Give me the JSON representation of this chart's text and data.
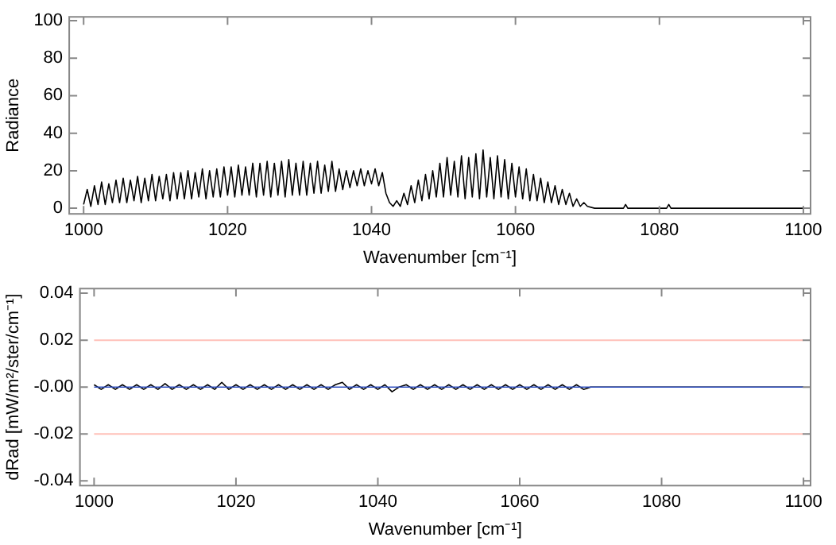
{
  "chart_data": [
    {
      "type": "line",
      "xlabel": "Wavenumber [cm⁻¹]",
      "ylabel": "Radiance",
      "xlim": [
        998,
        1101
      ],
      "xticks": [
        1000,
        1020,
        1040,
        1060,
        1080,
        1100
      ],
      "ylim": [
        -3,
        102
      ],
      "yticks": [
        0,
        20,
        40,
        60,
        80,
        100
      ],
      "grid": false,
      "series": [
        {
          "color": "#000000",
          "x": [
            1000,
            1000.5,
            1001,
            1001.5,
            1002,
            1002.5,
            1003,
            1003.5,
            1004,
            1004.5,
            1005,
            1005.5,
            1006,
            1006.5,
            1007,
            1007.5,
            1008,
            1008.5,
            1009,
            1009.5,
            1010,
            1010.5,
            1011,
            1011.5,
            1012,
            1012.5,
            1013,
            1013.5,
            1014,
            1014.5,
            1015,
            1015.5,
            1016,
            1016.5,
            1017,
            1017.5,
            1018,
            1018.5,
            1019,
            1019.5,
            1020,
            1020.5,
            1021,
            1021.5,
            1022,
            1022.5,
            1023,
            1023.5,
            1024,
            1024.5,
            1025,
            1025.5,
            1026,
            1026.5,
            1027,
            1027.5,
            1028,
            1028.5,
            1029,
            1029.5,
            1030,
            1030.5,
            1031,
            1031.5,
            1032,
            1032.5,
            1033,
            1033.5,
            1034,
            1034.5,
            1035,
            1035.5,
            1036,
            1036.5,
            1037,
            1037.5,
            1038,
            1038.5,
            1039,
            1039.5,
            1040,
            1040.5,
            1041,
            1041.5,
            1042,
            1042.5,
            1043,
            1043.5,
            1044,
            1044.5,
            1045,
            1045.5,
            1046,
            1046.5,
            1047,
            1047.5,
            1048,
            1048.5,
            1049,
            1049.5,
            1050,
            1050.5,
            1051,
            1051.5,
            1052,
            1052.5,
            1053,
            1053.5,
            1054,
            1054.5,
            1055,
            1055.5,
            1056,
            1056.5,
            1057,
            1057.5,
            1058,
            1058.5,
            1059,
            1059.5,
            1060,
            1060.5,
            1061,
            1061.5,
            1062,
            1062.5,
            1063,
            1063.5,
            1064,
            1064.5,
            1065,
            1065.5,
            1066,
            1066.5,
            1067,
            1067.5,
            1068,
            1068.5,
            1069,
            1069.5,
            1070,
            1071,
            1075,
            1075.3,
            1075.6,
            1081,
            1081.3,
            1081.6,
            1090,
            1100
          ],
          "values": [
            2,
            10,
            1,
            12,
            2,
            14,
            2,
            13,
            3,
            15,
            3,
            16,
            3,
            15,
            4,
            17,
            3,
            16,
            4,
            18,
            4,
            17,
            5,
            18,
            4,
            19,
            5,
            19,
            5,
            20,
            5,
            19,
            6,
            21,
            5,
            20,
            6,
            21,
            6,
            22,
            7,
            22,
            6,
            23,
            7,
            22,
            7,
            24,
            6,
            24,
            7,
            25,
            6,
            24,
            7,
            25,
            6,
            26,
            7,
            24,
            7,
            25,
            7,
            24,
            8,
            25,
            8,
            23,
            9,
            25,
            9,
            21,
            10,
            20,
            11,
            20,
            12,
            21,
            12,
            20,
            13,
            21,
            12,
            19,
            8,
            3,
            1,
            4,
            1,
            8,
            2,
            12,
            3,
            15,
            4,
            18,
            5,
            20,
            6,
            24,
            6,
            27,
            7,
            25,
            6,
            28,
            5,
            27,
            6,
            29,
            5,
            31,
            6,
            27,
            5,
            28,
            6,
            26,
            5,
            24,
            6,
            22,
            5,
            21,
            4,
            18,
            4,
            16,
            3,
            14,
            3,
            12,
            2,
            10,
            2,
            8,
            1,
            5,
            1,
            3,
            1,
            0,
            0,
            2,
            0,
            0,
            2,
            0,
            0,
            0
          ]
        }
      ]
    },
    {
      "type": "line",
      "xlabel": "Wavenumber [cm⁻¹]",
      "ylabel": "dRad [mW/m²/ster/cm⁻¹]",
      "xlim": [
        998,
        1101
      ],
      "xticks": [
        1000,
        1020,
        1040,
        1060,
        1080,
        1100
      ],
      "ylim": [
        -0.042,
        0.042
      ],
      "yticks": [
        {
          "value": -0.04,
          "label": "-0.04"
        },
        {
          "value": -0.02,
          "label": "-0.02"
        },
        {
          "value": 0,
          "label": "-0.00"
        },
        {
          "value": 0.02,
          "label": "0.02"
        },
        {
          "value": 0.04,
          "label": "0.04"
        }
      ],
      "grid": false,
      "ref_lines": [
        {
          "axis": "y",
          "value": 0.02,
          "color": "#ffc0b8"
        },
        {
          "axis": "y",
          "value": -0.02,
          "color": "#ffc0b8"
        }
      ],
      "series": [
        {
          "color": "#3050c0",
          "x": [
            1000,
            1100
          ],
          "values": [
            0,
            0
          ]
        },
        {
          "color": "#000000",
          "x": [
            1000,
            1001,
            1002,
            1003,
            1004,
            1005,
            1006,
            1007,
            1008,
            1009,
            1010,
            1011,
            1012,
            1013,
            1014,
            1015,
            1016,
            1017,
            1018,
            1019,
            1020,
            1021,
            1022,
            1023,
            1024,
            1025,
            1026,
            1027,
            1028,
            1029,
            1030,
            1031,
            1032,
            1033,
            1034,
            1035,
            1036,
            1037,
            1038,
            1039,
            1040,
            1041,
            1042,
            1043,
            1044,
            1045,
            1046,
            1047,
            1048,
            1049,
            1050,
            1051,
            1052,
            1053,
            1054,
            1055,
            1056,
            1057,
            1058,
            1059,
            1060,
            1061,
            1062,
            1063,
            1064,
            1065,
            1066,
            1067,
            1068,
            1069,
            1070,
            1100
          ],
          "values": [
            0.001,
            -0.001,
            0.001,
            -0.001,
            0.001,
            -0.001,
            0.001,
            -0.001,
            0.001,
            -0.001,
            0.0015,
            -0.001,
            0.001,
            -0.001,
            0.001,
            -0.001,
            0.001,
            -0.001,
            0.002,
            -0.001,
            0.001,
            -0.001,
            0.001,
            -0.001,
            0.001,
            -0.001,
            0.001,
            -0.001,
            0.001,
            -0.001,
            0.001,
            -0.001,
            0.001,
            -0.001,
            0.001,
            0.002,
            -0.001,
            0.001,
            -0.001,
            0.001,
            -0.001,
            0.001,
            -0.002,
            0,
            0.001,
            -0.001,
            0.001,
            -0.001,
            0.001,
            -0.001,
            0.001,
            -0.001,
            0.001,
            -0.001,
            0.001,
            -0.001,
            0.001,
            -0.001,
            0.001,
            -0.001,
            0.001,
            -0.001,
            0.001,
            -0.001,
            0.001,
            -0.001,
            0.001,
            -0.001,
            0.001,
            -0.001,
            0,
            0
          ]
        }
      ]
    }
  ]
}
